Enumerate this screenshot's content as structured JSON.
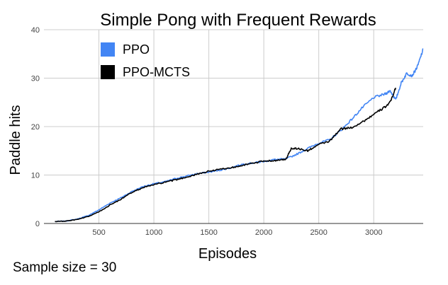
{
  "note": "Sample size = 30",
  "chart_data": {
    "type": "line",
    "title": "Simple Pong with Frequent Rewards",
    "xlabel": "Episodes",
    "ylabel": "Paddle hits",
    "xlim": [
      0,
      3450
    ],
    "ylim": [
      0,
      40
    ],
    "x_ticks": [
      500,
      1000,
      1500,
      2000,
      2500,
      3000
    ],
    "y_ticks": [
      0,
      10,
      20,
      30,
      40
    ],
    "grid": true,
    "legend_position": "top-left",
    "series": [
      {
        "name": "PPO",
        "color": "#4285F4",
        "x": [
          100,
          200,
          300,
          400,
          500,
          600,
          700,
          800,
          900,
          1000,
          1100,
          1200,
          1300,
          1400,
          1500,
          1600,
          1700,
          1800,
          1900,
          2000,
          2100,
          2200,
          2300,
          2400,
          2500,
          2600,
          2700,
          2800,
          2900,
          3000,
          3100,
          3150,
          3200,
          3250,
          3300,
          3350,
          3400,
          3450
        ],
        "y": [
          0.4,
          0.5,
          0.9,
          1.6,
          2.8,
          4.2,
          5.3,
          6.6,
          7.6,
          8.2,
          8.6,
          9.3,
          9.8,
          10.3,
          10.6,
          11.0,
          11.5,
          12.2,
          12.5,
          12.8,
          13.2,
          13.3,
          14.3,
          15.5,
          16.6,
          17.3,
          19.2,
          21.5,
          24.0,
          26.0,
          26.7,
          27.4,
          25.5,
          29.0,
          31.0,
          30.5,
          32.5,
          36.0
        ]
      },
      {
        "name": "PPO-MCTS",
        "color": "#000000",
        "x": [
          100,
          200,
          300,
          400,
          500,
          600,
          700,
          800,
          900,
          1000,
          1100,
          1200,
          1300,
          1400,
          1500,
          1600,
          1700,
          1800,
          1900,
          2000,
          2100,
          2200,
          2250,
          2300,
          2400,
          2500,
          2600,
          2700,
          2800,
          2900,
          3000,
          3100,
          3150,
          3200
        ],
        "y": [
          0.4,
          0.5,
          0.8,
          1.4,
          2.4,
          3.8,
          5.0,
          6.4,
          7.4,
          8.0,
          8.5,
          9.0,
          9.6,
          10.2,
          10.8,
          11.2,
          11.5,
          12.0,
          12.4,
          12.9,
          13.0,
          13.2,
          15.5,
          15.5,
          15.0,
          16.3,
          17.0,
          19.5,
          19.8,
          21.0,
          22.5,
          24.0,
          25.0,
          28.0
        ]
      }
    ]
  }
}
